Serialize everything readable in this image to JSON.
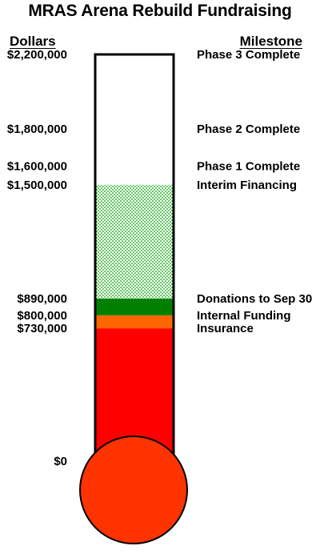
{
  "header": {
    "title": "MRAS Arena Rebuild Fundraising",
    "dollars_heading": "Dollars",
    "milestone_heading": "Milestone"
  },
  "chart_data": {
    "type": "thermometer",
    "title": "MRAS Arena Rebuild Fundraising",
    "unit": "Dollars",
    "ylim": [
      0,
      2200000
    ],
    "segments": [
      {
        "label": "Insurance",
        "from": 0,
        "to": 730000,
        "color": "#ff0000",
        "fill": "solid"
      },
      {
        "label": "Internal Funding",
        "from": 730000,
        "to": 800000,
        "color": "#ff6600",
        "fill": "solid"
      },
      {
        "label": "Donations to Sep 30",
        "from": 800000,
        "to": 890000,
        "color": "#008000",
        "fill": "solid"
      },
      {
        "label": "Interim Financing",
        "from": 890000,
        "to": 1500000,
        "color": "#00a000",
        "fill": "dotted"
      }
    ],
    "milestones": [
      {
        "value": 0,
        "value_label": "$0",
        "name": ""
      },
      {
        "value": 730000,
        "value_label": "$730,000",
        "name": "Insurance"
      },
      {
        "value": 800000,
        "value_label": "$800,000",
        "name": "Internal Funding"
      },
      {
        "value": 890000,
        "value_label": "$890,000",
        "name": "Donations to Sep 30"
      },
      {
        "value": 1500000,
        "value_label": "$1,500,000",
        "name": "Interim Financing"
      },
      {
        "value": 1600000,
        "value_label": "$1,600,000",
        "name": "Phase 1 Complete"
      },
      {
        "value": 1800000,
        "value_label": "$1,800,000",
        "name": "Phase 2 Complete"
      },
      {
        "value": 2200000,
        "value_label": "$2,200,000",
        "name": "Phase 3 Complete"
      }
    ],
    "bulb_color": "#ff3300",
    "grid": false
  }
}
